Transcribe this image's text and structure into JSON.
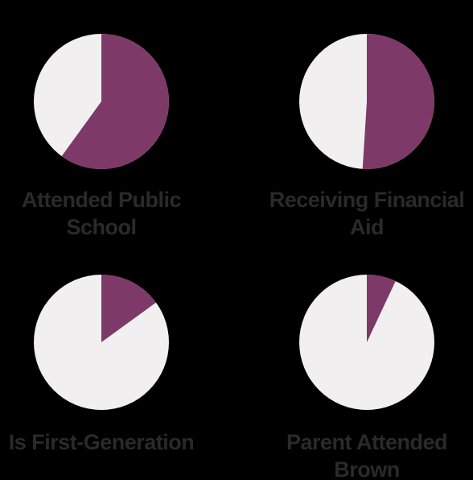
{
  "colors": {
    "background": "#000000",
    "filled": "#7d3a68",
    "empty": "#f1eff0",
    "label_text": "#2a2a2a"
  },
  "chart_data": [
    {
      "type": "pie",
      "label_lines": [
        "Attended Public",
        "School"
      ],
      "values": [
        60,
        40
      ]
    },
    {
      "type": "pie",
      "label_lines": [
        "Receiving Financial",
        "Aid"
      ],
      "values": [
        51,
        49
      ]
    },
    {
      "type": "pie",
      "label_lines": [
        "Is First-Generation"
      ],
      "values": [
        15,
        85
      ]
    },
    {
      "type": "pie",
      "label_lines": [
        "Parent Attended",
        "Brown"
      ],
      "values": [
        7,
        93
      ]
    }
  ]
}
